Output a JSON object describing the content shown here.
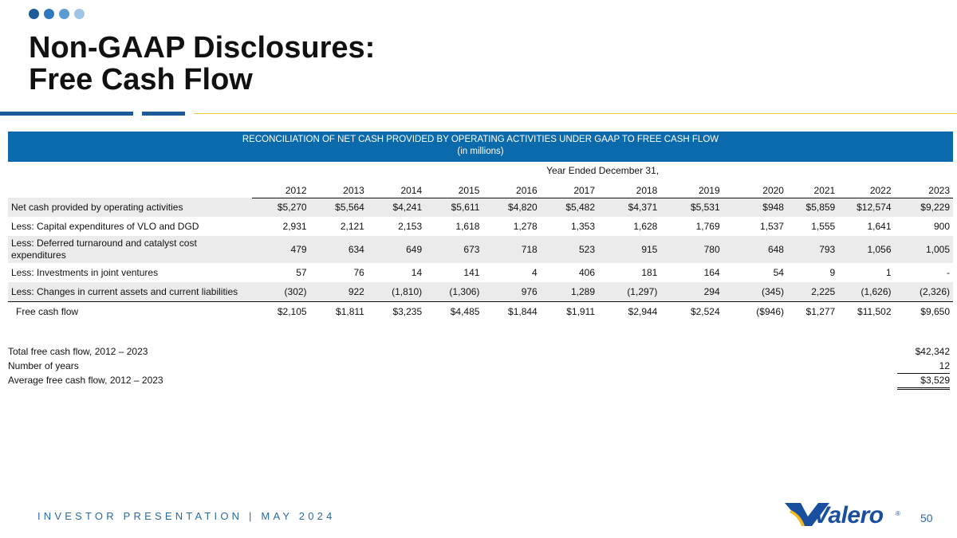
{
  "colors": {
    "dot1": "#1c5a99",
    "dot2": "#2d78bf",
    "dot3": "#5c9ad2",
    "dot4": "#9fc4e4",
    "title_rule": "#1c5a99",
    "accent_line": "#f0c83c",
    "banner": "#0a6aac",
    "row_shade": "#ebebeb",
    "footer": "#2a6aa8",
    "logo_blue": "#1a4fa0",
    "logo_gold": "#f2b820"
  },
  "title": {
    "line1": "Non-GAAP Disclosures:",
    "line2": "Free Cash Flow"
  },
  "banner": {
    "line1": "RECONCILIATION OF NET CASH PROVIDED BY OPERATING ACTIVITIES UNDER GAAP TO FREE CASH FLOW",
    "line2": "(in millions)"
  },
  "table": {
    "caption": "Year Ended December 31,",
    "years": [
      "2012",
      "2013",
      "2014",
      "2015",
      "2016",
      "2017",
      "2018",
      "2019",
      "2020",
      "2021",
      "2022",
      "2023"
    ],
    "rows": [
      {
        "label": "Net cash provided by operating activities",
        "values": [
          "$5,270",
          "$5,564",
          "$4,241",
          "$5,611",
          "$4,820",
          "$5,482",
          "$4,371",
          "$5,531",
          "$948",
          "$5,859",
          "$12,574",
          "$9,229"
        ]
      },
      {
        "label": "Less: Capital expenditures of VLO and DGD",
        "values": [
          "2,931",
          "2,121",
          "2,153",
          "1,618",
          "1,278",
          "1,353",
          "1,628",
          "1,769",
          "1,537",
          "1,555",
          "1,641",
          "900"
        ]
      },
      {
        "label": "Less: Deferred turnaround and catalyst cost expenditures",
        "values": [
          "479",
          "634",
          "649",
          "673",
          "718",
          "523",
          "915",
          "780",
          "648",
          "793",
          "1,056",
          "1,005"
        ]
      },
      {
        "label": "Less: Investments in joint ventures",
        "values": [
          "57",
          "76",
          "14",
          "141",
          "4",
          "406",
          "181",
          "164",
          "54",
          "9",
          "1",
          "-"
        ]
      },
      {
        "label": "Less: Changes in current assets and current liabilities",
        "values": [
          "(302)",
          "922",
          "(1,810)",
          "(1,306)",
          "976",
          "1,289",
          "(1,297)",
          "294",
          "(345)",
          "2,225",
          "(1,626)",
          "(2,326)"
        ]
      }
    ],
    "total": {
      "label": "Free cash flow",
      "values": [
        "$2,105",
        "$1,811",
        "$3,235",
        "$4,485",
        "$1,844",
        "$1,911",
        "$2,944",
        "$2,524",
        "($946)",
        "$1,277",
        "$11,502",
        "$9,650"
      ]
    }
  },
  "summary": [
    {
      "label": "Total free cash flow, 2012 – 2023",
      "value": "$42,342"
    },
    {
      "label": "Number of years",
      "value": "12"
    },
    {
      "label": "Average free cash flow, 2012 – 2023",
      "value": "$3,529"
    }
  ],
  "footer": {
    "text": "INVESTOR PRESENTATION | MAY 2024",
    "page_number": "50"
  },
  "logo": {
    "name": "Valero",
    "mark": "®"
  }
}
